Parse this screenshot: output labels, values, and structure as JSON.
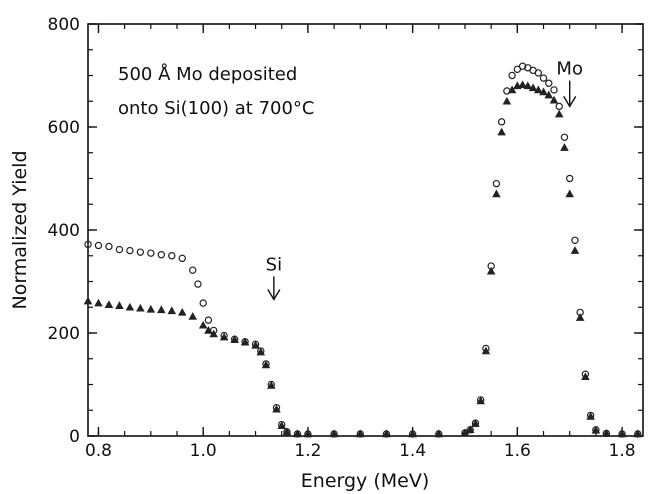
{
  "chart_data": {
    "type": "scatter",
    "xlabel": "Energy (MeV)",
    "ylabel": "Normalized Yield",
    "xlim": [
      0.78,
      1.84
    ],
    "ylim": [
      0,
      800
    ],
    "x_ticks": [
      0.8,
      1.0,
      1.2,
      1.4,
      1.6,
      1.8
    ],
    "x_tick_labels": [
      "0.8",
      "1.0",
      "1.2",
      "1.4",
      "1.6",
      "1.8"
    ],
    "y_ticks": [
      0,
      200,
      400,
      600,
      800
    ],
    "y_tick_labels": [
      "0",
      "200",
      "400",
      "600",
      "800"
    ],
    "grid": false,
    "annotation_lines": [
      "500 Å Mo deposited",
      "onto Si(100) at 700°C"
    ],
    "markers": [
      {
        "label": "Si",
        "x": 1.135,
        "y_top": 310,
        "y_bottom": 265
      },
      {
        "label": "Mo",
        "x": 1.7,
        "y_top": 690,
        "y_bottom": 640
      }
    ],
    "series": [
      {
        "marker": "circle",
        "color": "#222222",
        "points": [
          [
            0.78,
            372
          ],
          [
            0.8,
            370
          ],
          [
            0.82,
            368
          ],
          [
            0.84,
            362
          ],
          [
            0.86,
            360
          ],
          [
            0.88,
            357
          ],
          [
            0.9,
            355
          ],
          [
            0.92,
            352
          ],
          [
            0.94,
            350
          ],
          [
            0.96,
            345
          ],
          [
            0.98,
            322
          ],
          [
            0.99,
            295
          ],
          [
            1.0,
            258
          ],
          [
            1.01,
            225
          ],
          [
            1.02,
            205
          ],
          [
            1.04,
            195
          ],
          [
            1.06,
            188
          ],
          [
            1.08,
            183
          ],
          [
            1.1,
            178
          ],
          [
            1.11,
            165
          ],
          [
            1.12,
            140
          ],
          [
            1.13,
            100
          ],
          [
            1.14,
            55
          ],
          [
            1.15,
            22
          ],
          [
            1.16,
            8
          ],
          [
            1.18,
            4
          ],
          [
            1.2,
            4
          ],
          [
            1.25,
            4
          ],
          [
            1.3,
            4
          ],
          [
            1.35,
            4
          ],
          [
            1.4,
            4
          ],
          [
            1.45,
            4
          ],
          [
            1.5,
            6
          ],
          [
            1.51,
            12
          ],
          [
            1.52,
            25
          ],
          [
            1.53,
            70
          ],
          [
            1.54,
            170
          ],
          [
            1.55,
            330
          ],
          [
            1.56,
            490
          ],
          [
            1.57,
            610
          ],
          [
            1.58,
            670
          ],
          [
            1.59,
            700
          ],
          [
            1.6,
            712
          ],
          [
            1.61,
            718
          ],
          [
            1.62,
            715
          ],
          [
            1.63,
            710
          ],
          [
            1.64,
            705
          ],
          [
            1.65,
            695
          ],
          [
            1.66,
            685
          ],
          [
            1.67,
            672
          ],
          [
            1.68,
            640
          ],
          [
            1.69,
            580
          ],
          [
            1.7,
            500
          ],
          [
            1.71,
            380
          ],
          [
            1.72,
            240
          ],
          [
            1.73,
            120
          ],
          [
            1.74,
            40
          ],
          [
            1.75,
            12
          ],
          [
            1.77,
            5
          ],
          [
            1.8,
            4
          ],
          [
            1.83,
            4
          ]
        ]
      },
      {
        "marker": "triangle",
        "color": "#222222",
        "points": [
          [
            0.78,
            262
          ],
          [
            0.8,
            258
          ],
          [
            0.82,
            255
          ],
          [
            0.84,
            253
          ],
          [
            0.86,
            250
          ],
          [
            0.88,
            248
          ],
          [
            0.9,
            246
          ],
          [
            0.92,
            245
          ],
          [
            0.94,
            243
          ],
          [
            0.96,
            240
          ],
          [
            0.98,
            232
          ],
          [
            1.0,
            215
          ],
          [
            1.01,
            205
          ],
          [
            1.02,
            198
          ],
          [
            1.04,
            192
          ],
          [
            1.06,
            187
          ],
          [
            1.08,
            182
          ],
          [
            1.1,
            176
          ],
          [
            1.11,
            163
          ],
          [
            1.12,
            138
          ],
          [
            1.13,
            98
          ],
          [
            1.14,
            52
          ],
          [
            1.15,
            20
          ],
          [
            1.16,
            8
          ],
          [
            1.18,
            4
          ],
          [
            1.2,
            4
          ],
          [
            1.25,
            4
          ],
          [
            1.3,
            4
          ],
          [
            1.35,
            4
          ],
          [
            1.4,
            4
          ],
          [
            1.45,
            4
          ],
          [
            1.5,
            6
          ],
          [
            1.51,
            12
          ],
          [
            1.52,
            24
          ],
          [
            1.53,
            68
          ],
          [
            1.54,
            165
          ],
          [
            1.55,
            320
          ],
          [
            1.56,
            470
          ],
          [
            1.57,
            590
          ],
          [
            1.58,
            650
          ],
          [
            1.59,
            672
          ],
          [
            1.6,
            680
          ],
          [
            1.61,
            682
          ],
          [
            1.62,
            680
          ],
          [
            1.63,
            676
          ],
          [
            1.64,
            672
          ],
          [
            1.65,
            668
          ],
          [
            1.66,
            662
          ],
          [
            1.67,
            652
          ],
          [
            1.68,
            625
          ],
          [
            1.69,
            560
          ],
          [
            1.7,
            470
          ],
          [
            1.71,
            360
          ],
          [
            1.72,
            230
          ],
          [
            1.73,
            115
          ],
          [
            1.74,
            38
          ],
          [
            1.75,
            11
          ],
          [
            1.77,
            5
          ],
          [
            1.8,
            4
          ],
          [
            1.83,
            4
          ]
        ]
      }
    ]
  }
}
